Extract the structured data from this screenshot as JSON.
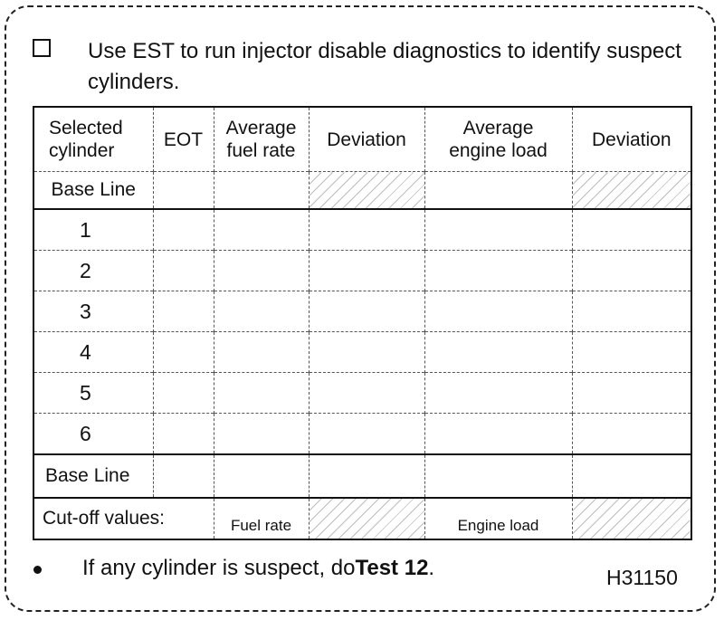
{
  "instruction": "Use EST to run injector disable diagnostics to identify suspect cylinders.",
  "table": {
    "headers": {
      "selected_cylinder_line1": "Selected",
      "selected_cylinder_line2": "cylinder",
      "eot": "EOT",
      "avg_fuel_rate_line1": "Average",
      "avg_fuel_rate_line2": "fuel rate",
      "deviation_1": "Deviation",
      "avg_engine_load_line1": "Average",
      "avg_engine_load_line2": "engine load",
      "deviation_2": "Deviation"
    },
    "base_line_top": "Base Line",
    "cylinders": [
      "1",
      "2",
      "3",
      "4",
      "5",
      "6"
    ],
    "base_line_bottom": "Base Line",
    "cutoff_label": "Cut-off values:",
    "cutoff_fuel_rate": "Fuel rate",
    "cutoff_engine_load": "Engine load"
  },
  "footnote": {
    "prefix": "If any cylinder is suspect, do",
    "action": "Test 12",
    "suffix": "."
  },
  "figure_code": "H31150"
}
